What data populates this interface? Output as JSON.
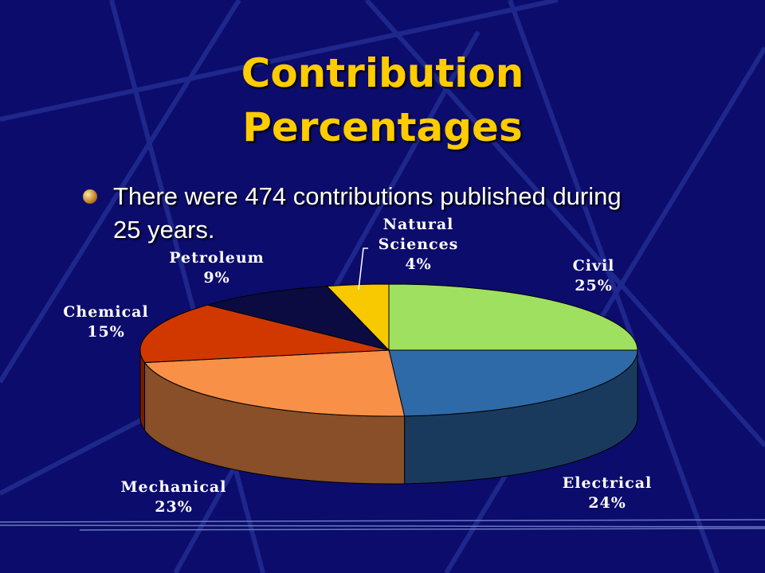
{
  "chart_data": {
    "type": "pie",
    "title": "Contribution Percentages",
    "subtitle": "There were 474 contributions published during 25 years.",
    "categories": [
      "Civil",
      "Electrical",
      "Mechanical",
      "Chemical",
      "Petroleum",
      "Natural Sciences"
    ],
    "values": [
      25,
      24,
      23,
      15,
      9,
      4
    ],
    "value_labels": [
      "25%",
      "24%",
      "23%",
      "15%",
      "9%",
      "4%"
    ],
    "colors": [
      "#a0e060",
      "#2e6aa8",
      "#f89048",
      "#d03800",
      "#0b0b42",
      "#f8c800"
    ]
  }
}
